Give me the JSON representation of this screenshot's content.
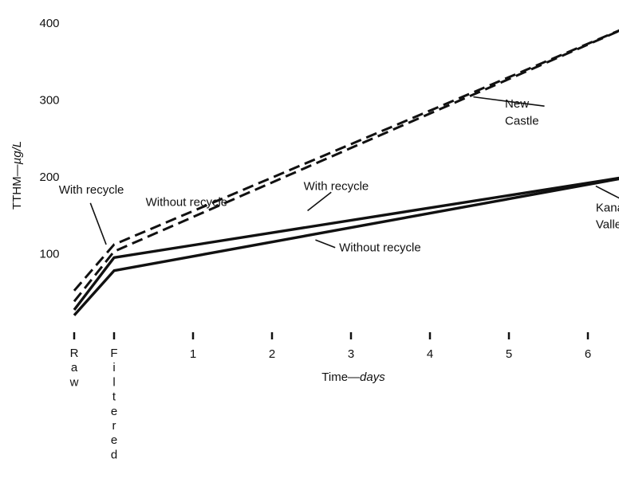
{
  "chart_data": {
    "type": "line",
    "title": "",
    "xlabel": "Time—days",
    "xlabel_parts": [
      "Time—",
      "days"
    ],
    "ylabel": "TTHM—µg/L",
    "ylabel_parts": [
      "TTHM—",
      "µg/L"
    ],
    "ylim": [
      0,
      420
    ],
    "xlim": [
      -0.3,
      6.8
    ],
    "grid": false,
    "legend": "none",
    "y_ticks": [
      100,
      200,
      300,
      400
    ],
    "x_ticks": [
      {
        "x": -1,
        "label": "Raw",
        "vertical": true
      },
      {
        "x": 0,
        "label": "Filtered",
        "vertical": true
      },
      {
        "x": 1,
        "label": "1"
      },
      {
        "x": 2,
        "label": "2"
      },
      {
        "x": 3,
        "label": "3"
      },
      {
        "x": 4,
        "label": "4"
      },
      {
        "x": 5,
        "label": "5"
      },
      {
        "x": 6,
        "label": "6"
      }
    ],
    "series": [
      {
        "style": "dashed",
        "x": [
          -1,
          0,
          6.8
        ],
        "y": [
          38,
          103,
          408
        ]
      },
      {
        "style": "dashed",
        "x": [
          -1,
          0,
          6.8
        ],
        "y": [
          52,
          112,
          408
        ]
      },
      {
        "style": "solid",
        "x": [
          -1,
          0,
          6.8
        ],
        "y": [
          20,
          78,
          205
        ]
      },
      {
        "style": "solid",
        "x": [
          -1,
          0,
          6.8
        ],
        "y": [
          27,
          95,
          205
        ]
      }
    ],
    "annotations": [
      {
        "text": "New",
        "x": 4.95,
        "y": 290
      },
      {
        "text": "Castle",
        "x": 4.95,
        "y": 268
      },
      {
        "text": "With recycle",
        "x": -0.7,
        "y": 178
      },
      {
        "text": "Without recycle",
        "x": 0.4,
        "y": 162
      },
      {
        "text": "With recycle",
        "x": 2.4,
        "y": 183
      },
      {
        "text": "Without recycle",
        "x": 2.85,
        "y": 103
      },
      {
        "text": "Kanawha",
        "x": 6.1,
        "y": 155
      },
      {
        "text": "Valley",
        "x": 6.1,
        "y": 133
      }
    ],
    "leaders": [
      {
        "from": [
          5.45,
          292
        ],
        "to": [
          4.55,
          304
        ]
      },
      {
        "from": [
          -0.3,
          166
        ],
        "to": [
          -0.1,
          112
        ]
      },
      {
        "from": [
          2.75,
          180
        ],
        "to": [
          2.45,
          156
        ]
      },
      {
        "from": [
          2.8,
          108
        ],
        "to": [
          2.55,
          118
        ]
      },
      {
        "from": [
          6.5,
          167
        ],
        "to": [
          6.1,
          188
        ]
      }
    ]
  }
}
